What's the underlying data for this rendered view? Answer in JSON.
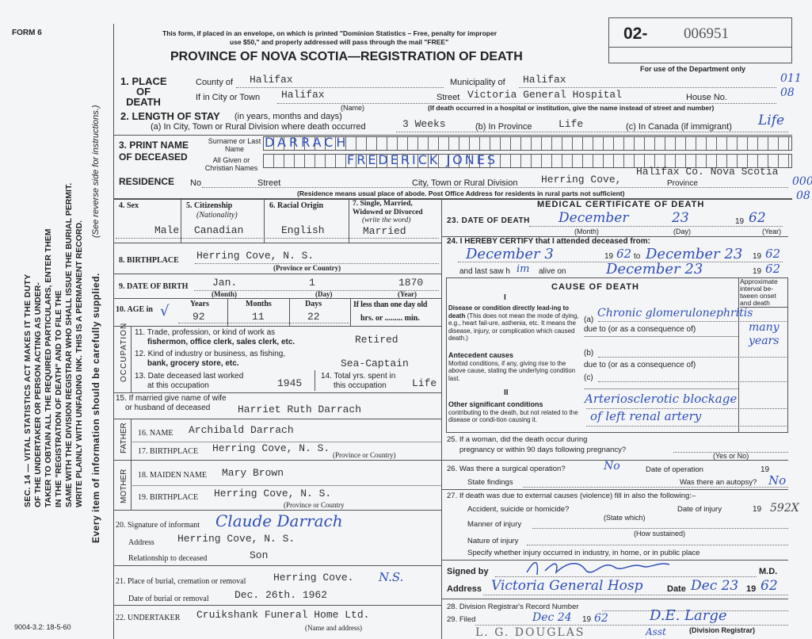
{
  "form_id": "FORM 6",
  "notice": [
    "This form, if placed in an envelope, on which is printed \"Dominion Statistics – Free, penalty for improper",
    "use $50,\" and properly addressed will pass through the mail \"FREE\""
  ],
  "reg_prefix": "02-",
  "reg_number": "006951",
  "dept_only": "For use of the Department only",
  "title": "PROVINCE OF NOVA SCOTIA—REGISTRATION OF DEATH",
  "margin": {
    "duty": [
      "SEC. 14 — VITAL STATISTICS ACT MAKES IT THE DUTY",
      "OF THE UNDERTAKER OR PERSON ACTING AS UNDER-",
      "TAKER TO OBTAIN ALL THE REQUIRED PARTICULARS, ENTER THEM",
      "IN THE \"REGISTRATION OF DEATH\" AND TO FILE THE",
      "SAME WITH THE DIVISION REGISTRAR WHO SHALL ISSUE THE BURIAL PERMIT.",
      "WRITE PLAINLY WITH UNFADING INK. THIS IS A PERMANENT RECORD."
    ],
    "every_item": "Every item of information should be carefully supplied.",
    "see_reverse": "(See reverse side for instructions.)"
  },
  "dept_codes": [
    "011",
    "08",
    "000",
    "08"
  ],
  "place": {
    "label": [
      "1. PLACE",
      "OF",
      "DEATH"
    ],
    "county_label": "County of",
    "county": "Halifax",
    "municipality_label": "Municipality of",
    "municipality": "Halifax",
    "city_label": "If in City or Town",
    "city": "Halifax",
    "name_hint": "(Name)",
    "street_label": "Street",
    "street": "Victoria General Hospital",
    "house_label": "House No.",
    "hospital_hint": "(If death occurred in a hospital or institution, give the name instead of street and number)"
  },
  "stay": {
    "label": "2. LENGTH OF STAY",
    "hint": "(in years, months and days)",
    "a_label": "(a) In City, Town or Rural Division where death occurred",
    "a": "3 Weeks",
    "b_label": "(b) In Province",
    "b": "Life",
    "c_label": "(c) In Canada (if immigrant)",
    "c": "Life"
  },
  "name": {
    "label": [
      "3. PRINT NAME",
      "OF DECEASED"
    ],
    "surname_label": "Surname or Last Name",
    "surname": "DARRACH",
    "given_label": "All Given or Christian Names",
    "given": "FREDERICK JONES"
  },
  "residence": {
    "label": "RESIDENCE",
    "no_label": "No",
    "street_label": "Street",
    "city_label": "City, Town or Rural Division",
    "city": "Herring Cove,",
    "province_label": "Province",
    "province": "Halifax Co. Nova Scotia",
    "hint": "(Residence means usual place of abode. Post Office Address for residents in rural parts not sufficient)"
  },
  "sex": {
    "label": "4. Sex",
    "value": "Male"
  },
  "citizenship": {
    "label": "5. Citizenship",
    "sub": "(Nationality)",
    "value": "Canadian"
  },
  "racial": {
    "label": "6. Racial Origin",
    "value": "English"
  },
  "marital": {
    "label": [
      "7. Single, Married,",
      "Widowed or Divorced",
      "(write the word)"
    ],
    "value": "Married"
  },
  "birthplace": {
    "label": "8. BIRTHPLACE",
    "value": "Herring Cove, N. S.",
    "hint": "(Province or Country)"
  },
  "dob": {
    "label": "9. DATE OF BIRTH",
    "month": "Jan.",
    "day": "1",
    "year": "1870",
    "month_hint": "(Month)",
    "day_hint": "(Day)",
    "year_hint": "(Year)"
  },
  "age": {
    "label": "10. AGE in",
    "years_label": "Years",
    "years": "92",
    "months_label": "Months",
    "months": "11",
    "days_label": "Days",
    "days": "22",
    "lt_label": "If less than one day old",
    "hrs": "hrs. or ......... min."
  },
  "occupation": {
    "side": "OCCUPATION",
    "q11": [
      "11. Trade, profession, or kind of work as",
      "fishermon, office clerk, sales clerk, etc."
    ],
    "a11": "Retired",
    "q12": [
      "12. Kind of industry or business, as fishing,",
      "bank, grocery store, etc."
    ],
    "a12": "Sea-Captain",
    "q13": [
      "13. Date deceased last worked",
      "at this occupation"
    ],
    "a13": "1945",
    "q14": [
      "14. Total yrs. spent in",
      "this occupation"
    ],
    "a14": "Life"
  },
  "spouse": {
    "label": [
      "15. If married give name of wife",
      "or husband of deceased"
    ],
    "value": "Harriet Ruth Darrach"
  },
  "father": {
    "side": "FATHER",
    "name_label": "16. NAME",
    "name": "Archibald Darrach",
    "bp_label": "17. BIRTHPLACE",
    "bp": "Herring Cove, N. S.",
    "hint": "(Province or Country)"
  },
  "mother": {
    "side": "MOTHER",
    "name_label": "18. MAIDEN NAME",
    "name": "Mary Brown",
    "bp_label": "19. BIRTHPLACE",
    "bp": "Herring Cove, N. S.",
    "hint": "(Province or Country"
  },
  "informant": {
    "label": "20. Signature of informant",
    "signature": "Claude Darrach",
    "address_label": "Address",
    "address": "Herring Cove, N. S.",
    "rel_label": "Relationship to deceased",
    "rel": "Son"
  },
  "burial": {
    "label": "21. Place of burial, cremation or removal",
    "place": "Herring Cove.",
    "place_hw": "N.S.",
    "date_label": "Date of burial or removal",
    "date": "Dec. 26th. 1962"
  },
  "undertaker": {
    "label": "22. UNDERTAKER",
    "value": "Cruikshank Funeral Home Ltd.",
    "hint": "(Name and address)"
  },
  "print_code": "9004-3.2: 18-5-60",
  "medical": {
    "title": "MEDICAL CERTIFICATE OF DEATH",
    "q23": "23. DATE OF DEATH",
    "dod_month": "December",
    "dod_day": "23",
    "dod_year": "62",
    "month_hint": "(Month)",
    "day_hint": "(Day)",
    "year_hint": "(Year)",
    "nineteen": "19",
    "q24": "24. I HEREBY CERTIFY that I attended deceased from:",
    "from": "December 3",
    "from_year": "62",
    "to_label": "to",
    "to": "December 23",
    "to_year": "62",
    "last_saw": "and last saw h",
    "last_saw_hw": "im",
    "alive_on": "alive on",
    "last_date": "December 23",
    "last_year": "62"
  },
  "cause": {
    "title": "CAUSE OF DEATH",
    "interval": "Approximate interval be-tween onset and death",
    "roman1": "I",
    "roman2": "II",
    "direct": "Disease or condition directly lead-ing to death",
    "direct_note": "(This does not mean the mode of dying, e.g., heart fail-ure, asthenia, etc. It means the disease, injury, or complication which caused death.)",
    "a_label": "(a)",
    "a": "Chronic glomerulonephritis",
    "a_interval": "many years",
    "due_to": "due to (or as a consequence of)",
    "antecedent": "Antecedent causes",
    "antecedent_note": "Morbid conditions, if any, giving rise to the above cause, stating the underlying condition last.",
    "b_label": "(b)",
    "c_label": "(c)",
    "other": "Other significant conditions",
    "other_note": "contributing to the death, but not related to the disease or condi-tion causing it.",
    "other_value": [
      "Arteriosclerotic blockage",
      "of left renal artery"
    ]
  },
  "q25": {
    "label": [
      "25. If a woman, did the death occur during",
      "pregnancy or within 90 days following pregnancy?"
    ],
    "hint": "(Yes or No)"
  },
  "q26": {
    "label": "26. Was there a surgical operation?",
    "value": "No",
    "date_label": "Date of operation",
    "nineteen": "19",
    "findings": "State findings",
    "autopsy": "Was there an autopsy?",
    "autopsy_value": "No"
  },
  "q27": {
    "label": "27. If death was due to external causes (violence) fill in also the following:–",
    "accident": "Accident, suicide or homicide?",
    "state_which": "(State which)",
    "date_injury": "Date of injury",
    "nineteen": "19",
    "note": "592X",
    "manner": "Manner of injury",
    "how": "(How sustained)",
    "nature": "Nature of injury",
    "specify": "Specify whether injury occurred in industry, in home, or in public place"
  },
  "signed": {
    "label": "Signed by",
    "md": "M.D.",
    "address_label": "Address",
    "address": "Victoria General Hosp",
    "date_label": "Date",
    "date": "Dec 23",
    "nineteen": "19",
    "year": "62"
  },
  "q28": "28. Division Registrar's Record Number",
  "q29": {
    "label": "29. Filed",
    "date": "Dec 24",
    "nineteen": "19",
    "year": "62",
    "registrar": "D.E. Large",
    "registrar_hint": "(Division Registrar)",
    "stamp": "L. G. DOUGLAS",
    "asst": "Asst"
  }
}
